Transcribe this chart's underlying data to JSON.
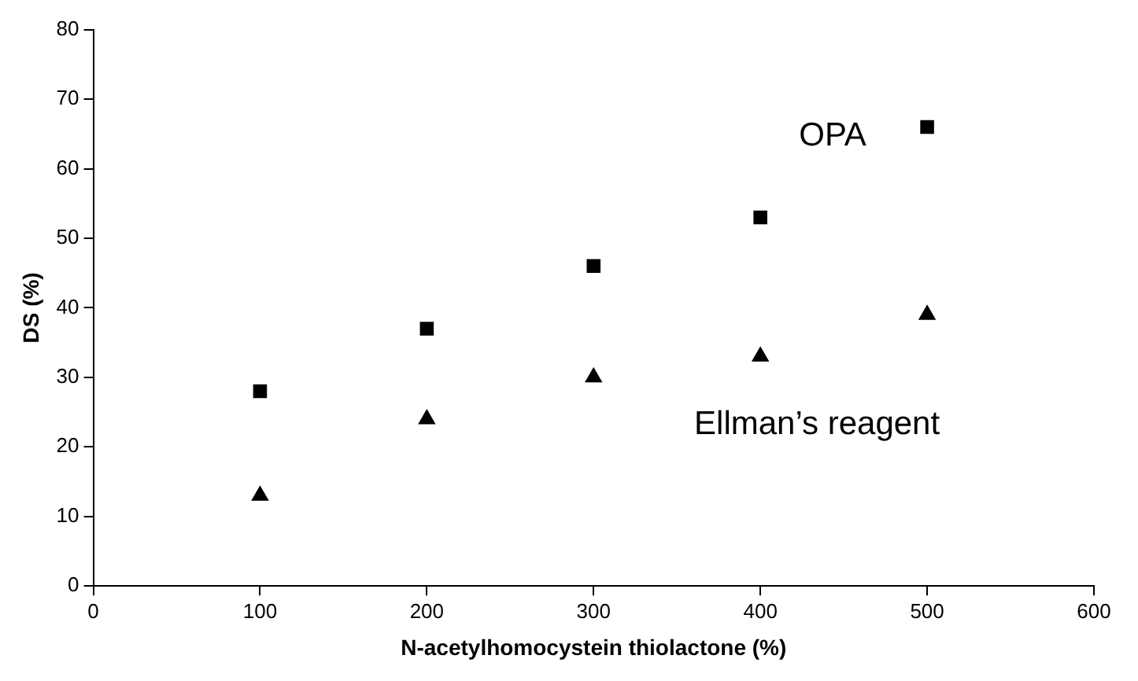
{
  "chart_data": {
    "type": "scatter",
    "xlabel": "N-acetylhomocystein thiolactone (%)",
    "ylabel": "DS (%)",
    "x": [
      100,
      200,
      300,
      400,
      500
    ],
    "series": [
      {
        "name": "OPA",
        "color": "#000000",
        "marker": "square",
        "values": [
          28,
          37,
          46,
          53,
          66
        ]
      },
      {
        "name": "Ellman’s reagent",
        "color": "#000000",
        "marker": "triangle",
        "values": [
          13,
          24,
          30,
          33,
          39
        ]
      }
    ],
    "xlim": [
      0,
      600
    ],
    "xticks": [
      0,
      100,
      200,
      300,
      400,
      500,
      600
    ],
    "ylim": [
      0,
      80
    ],
    "yticks": [
      0,
      10,
      20,
      30,
      40,
      50,
      60,
      70,
      80
    ],
    "grid": false,
    "legend": false
  }
}
